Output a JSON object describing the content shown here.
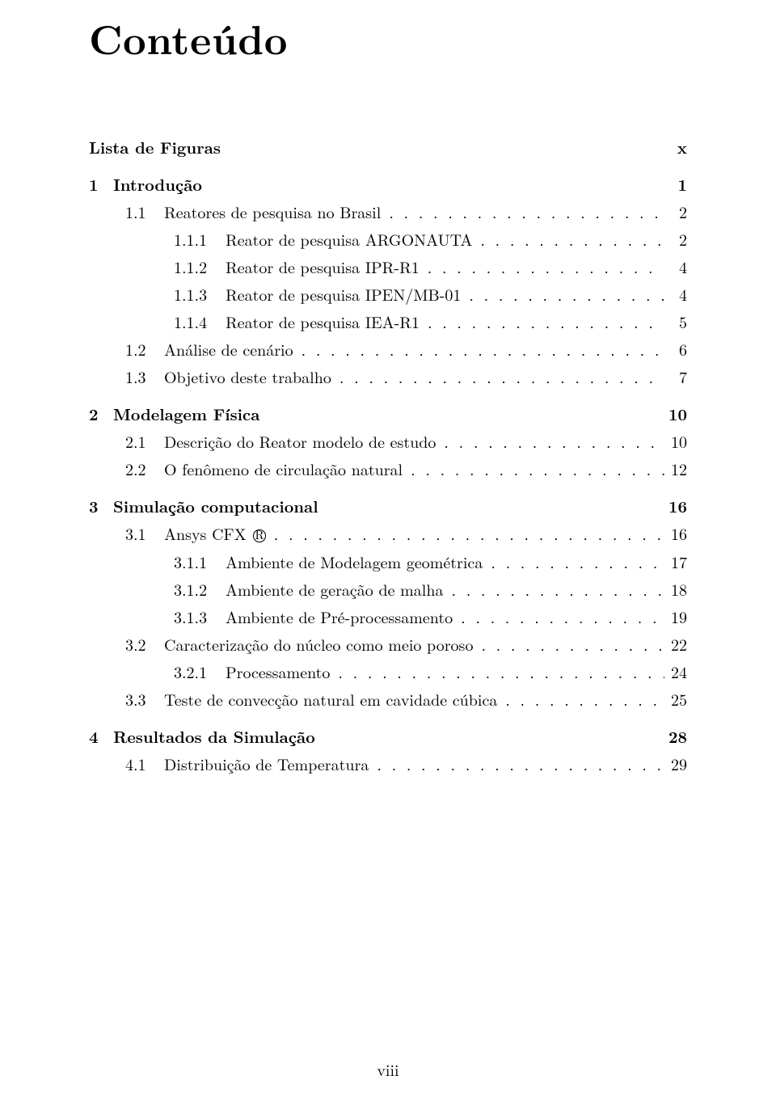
{
  "title": "Conteúdo",
  "page_number": "viii",
  "font": {
    "title_size_pt": 37,
    "body_size_pt": 15,
    "family": "Computer Modern Serif"
  },
  "colors": {
    "background": "#ffffff",
    "text": "#000000"
  },
  "entries": [
    {
      "label": "",
      "text": "Lista de Figuras",
      "page": "x",
      "bold": true,
      "indent": 0,
      "leader": false,
      "gap_before": false
    },
    {
      "label": "1",
      "text": "Introdução",
      "page": "1",
      "bold": true,
      "indent": 0,
      "leader": false,
      "gap_before": true
    },
    {
      "label": "1.1",
      "text": "Reatores de pesquisa no Brasil",
      "page": "2",
      "bold": false,
      "indent": 1,
      "leader": true,
      "gap_before": false
    },
    {
      "label": "1.1.1",
      "text": "Reator de pesquisa ARGONAUTA",
      "page": "2",
      "bold": false,
      "indent": 2,
      "leader": true,
      "gap_before": false
    },
    {
      "label": "1.1.2",
      "text": "Reator de pesquisa IPR-R1",
      "page": "4",
      "bold": false,
      "indent": 2,
      "leader": true,
      "gap_before": false
    },
    {
      "label": "1.1.3",
      "text": "Reator de pesquisa IPEN/MB-01",
      "page": "4",
      "bold": false,
      "indent": 2,
      "leader": true,
      "gap_before": false
    },
    {
      "label": "1.1.4",
      "text": "Reator de pesquisa IEA-R1",
      "page": "5",
      "bold": false,
      "indent": 2,
      "leader": true,
      "gap_before": false
    },
    {
      "label": "1.2",
      "text": "Análise de cenário",
      "page": "6",
      "bold": false,
      "indent": 1,
      "leader": true,
      "gap_before": false
    },
    {
      "label": "1.3",
      "text": "Objetivo deste trabalho",
      "page": "7",
      "bold": false,
      "indent": 1,
      "leader": true,
      "gap_before": false
    },
    {
      "label": "2",
      "text": "Modelagem Física",
      "page": "10",
      "bold": true,
      "indent": 0,
      "leader": false,
      "gap_before": true
    },
    {
      "label": "2.1",
      "text": "Descrição do Reator modelo de estudo",
      "page": "10",
      "bold": false,
      "indent": 1,
      "leader": true,
      "gap_before": false
    },
    {
      "label": "2.2",
      "text": "O fenômeno de circulação natural",
      "page": "12",
      "bold": false,
      "indent": 1,
      "leader": true,
      "gap_before": false
    },
    {
      "label": "3",
      "text": "Simulação computacional",
      "page": "16",
      "bold": true,
      "indent": 0,
      "leader": false,
      "gap_before": true
    },
    {
      "label": "3.1",
      "text": "Ansys CFX ®",
      "page": "16",
      "bold": false,
      "indent": 1,
      "leader": true,
      "gap_before": false
    },
    {
      "label": "3.1.1",
      "text": "Ambiente de Modelagem geométrica",
      "page": "17",
      "bold": false,
      "indent": 2,
      "leader": true,
      "gap_before": false
    },
    {
      "label": "3.1.2",
      "text": "Ambiente de geração de malha",
      "page": "18",
      "bold": false,
      "indent": 2,
      "leader": true,
      "gap_before": false
    },
    {
      "label": "3.1.3",
      "text": "Ambiente de Pré-processamento",
      "page": "19",
      "bold": false,
      "indent": 2,
      "leader": true,
      "gap_before": false
    },
    {
      "label": "3.2",
      "text": "Caracterização do núcleo como meio poroso",
      "page": "22",
      "bold": false,
      "indent": 1,
      "leader": true,
      "gap_before": false
    },
    {
      "label": "3.2.1",
      "text": "Processamento",
      "page": "24",
      "bold": false,
      "indent": 2,
      "leader": true,
      "gap_before": false
    },
    {
      "label": "3.3",
      "text": "Teste de convecção natural em cavidade cúbica",
      "page": "25",
      "bold": false,
      "indent": 1,
      "leader": true,
      "gap_before": false
    },
    {
      "label": "4",
      "text": "Resultados da Simulação",
      "page": "28",
      "bold": true,
      "indent": 0,
      "leader": false,
      "gap_before": true
    },
    {
      "label": "4.1",
      "text": "Distribuição de Temperatura",
      "page": "29",
      "bold": false,
      "indent": 1,
      "leader": true,
      "gap_before": false
    }
  ]
}
